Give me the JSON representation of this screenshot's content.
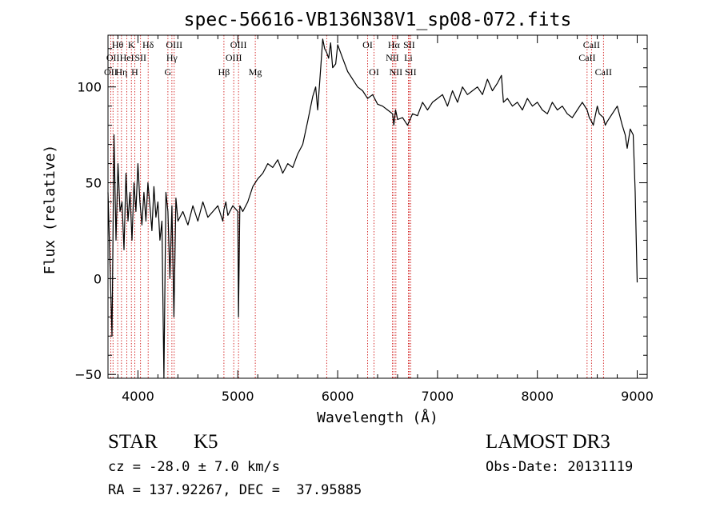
{
  "chart_data": {
    "type": "line",
    "title": "spec-56616-VB136N38V1_sp08-072.fits",
    "xlabel": "Wavelength (Å)",
    "ylabel": "Flux (relative)",
    "xlim": [
      3700,
      9100
    ],
    "ylim": [
      -52,
      127
    ],
    "xticks": [
      4000,
      5000,
      6000,
      7000,
      8000,
      9000
    ],
    "yticks": [
      -50,
      0,
      50,
      100
    ],
    "line_color": "#000000",
    "marker_color": "#cc0000",
    "series": [
      {
        "name": "flux",
        "x": [
          3700,
          3740,
          3760,
          3780,
          3800,
          3820,
          3840,
          3860,
          3880,
          3900,
          3920,
          3940,
          3960,
          3980,
          4000,
          4020,
          4040,
          4060,
          4080,
          4100,
          4120,
          4140,
          4160,
          4180,
          4200,
          4220,
          4240,
          4260,
          4280,
          4300,
          4320,
          4340,
          4360,
          4380,
          4400,
          4450,
          4500,
          4550,
          4600,
          4650,
          4700,
          4750,
          4800,
          4850,
          4861,
          4880,
          4900,
          4950,
          5000,
          5007,
          5020,
          5050,
          5100,
          5150,
          5200,
          5250,
          5300,
          5350,
          5400,
          5450,
          5500,
          5550,
          5600,
          5650,
          5700,
          5750,
          5780,
          5800,
          5830,
          5850,
          5870,
          5890,
          5910,
          5930,
          5950,
          5980,
          6000,
          6050,
          6100,
          6150,
          6200,
          6250,
          6300,
          6350,
          6400,
          6450,
          6500,
          6550,
          6563,
          6580,
          6600,
          6650,
          6700,
          6750,
          6800,
          6850,
          6900,
          6950,
          7000,
          7050,
          7100,
          7150,
          7200,
          7250,
          7300,
          7350,
          7400,
          7450,
          7500,
          7550,
          7600,
          7640,
          7660,
          7700,
          7750,
          7800,
          7850,
          7900,
          7950,
          8000,
          8050,
          8100,
          8150,
          8200,
          8250,
          8300,
          8350,
          8400,
          8450,
          8498,
          8520,
          8542,
          8560,
          8600,
          8620,
          8662,
          8680,
          8700,
          8750,
          8800,
          8850,
          8880,
          8900,
          8930,
          8960,
          8980,
          8990,
          9000
        ],
        "y": [
          45,
          -30,
          75,
          20,
          60,
          35,
          40,
          15,
          55,
          30,
          45,
          20,
          50,
          35,
          60,
          40,
          28,
          45,
          30,
          50,
          38,
          25,
          48,
          32,
          40,
          20,
          30,
          -52,
          45,
          35,
          0,
          38,
          -20,
          42,
          30,
          35,
          28,
          38,
          30,
          40,
          32,
          35,
          38,
          30,
          36,
          40,
          33,
          38,
          35,
          -20,
          38,
          35,
          40,
          48,
          52,
          55,
          60,
          58,
          62,
          55,
          60,
          58,
          65,
          70,
          82,
          95,
          100,
          88,
          110,
          125,
          120,
          118,
          115,
          123,
          110,
          112,
          122,
          115,
          108,
          104,
          100,
          98,
          94,
          96,
          91,
          90,
          88,
          86,
          80,
          88,
          83,
          84,
          80,
          86,
          85,
          92,
          88,
          92,
          94,
          96,
          90,
          98,
          92,
          100,
          96,
          98,
          100,
          96,
          104,
          98,
          102,
          106,
          92,
          94,
          90,
          92,
          88,
          94,
          90,
          92,
          88,
          86,
          92,
          88,
          90,
          86,
          84,
          88,
          92,
          88,
          84,
          82,
          80,
          90,
          86,
          84,
          80,
          82,
          86,
          90,
          80,
          75,
          68,
          78,
          75,
          45,
          20,
          -2
        ]
      }
    ],
    "lines": [
      {
        "x": 3727,
        "label": "OII",
        "row": 3
      },
      {
        "x": 3750,
        "label": "OII",
        "row": 2
      },
      {
        "x": 3797,
        "label": "Hθ",
        "row": 1
      },
      {
        "x": 3835,
        "label": "Hη",
        "row": 3
      },
      {
        "x": 3889,
        "label": "HeI",
        "row": 2
      },
      {
        "x": 3934,
        "label": "K",
        "row": 1
      },
      {
        "x": 3968,
        "label": "H",
        "row": 3
      },
      {
        "x": 4026,
        "label": "SII",
        "row": 2
      },
      {
        "x": 4102,
        "label": "Hδ",
        "row": 1
      },
      {
        "x": 4300,
        "label": "G",
        "row": 3
      },
      {
        "x": 4340,
        "label": "Hγ",
        "row": 2
      },
      {
        "x": 4363,
        "label": "OIII",
        "row": 1
      },
      {
        "x": 4861,
        "label": "Hβ",
        "row": 3
      },
      {
        "x": 4959,
        "label": "OIII",
        "row": 2
      },
      {
        "x": 5007,
        "label": "OIII",
        "row": 1
      },
      {
        "x": 5175,
        "label": "Mg",
        "row": 3
      },
      {
        "x": 5890,
        "label": "",
        "row": 0
      },
      {
        "x": 6300,
        "label": "OI",
        "row": 1
      },
      {
        "x": 6364,
        "label": "OI",
        "row": 3
      },
      {
        "x": 6548,
        "label": "NII",
        "row": 2
      },
      {
        "x": 6563,
        "label": "Hα",
        "row": 1
      },
      {
        "x": 6583,
        "label": "NII",
        "row": 3
      },
      {
        "x": 6708,
        "label": "Li",
        "row": 2
      },
      {
        "x": 6716,
        "label": "SII",
        "row": 1
      },
      {
        "x": 6731,
        "label": "SII",
        "row": 3
      },
      {
        "x": 8498,
        "label": "CaII",
        "row": 2
      },
      {
        "x": 8542,
        "label": "CaII",
        "row": 1
      },
      {
        "x": 8662,
        "label": "CaII",
        "row": 3
      }
    ]
  },
  "info": {
    "class": "STAR",
    "subclass": "K5",
    "survey": "LAMOST DR3",
    "cz": "cz = -28.0 ± 7.0 km/s",
    "obs_date": "Obs-Date: 20131119",
    "radec": "RA = 137.92267, DEC =  37.95885"
  }
}
